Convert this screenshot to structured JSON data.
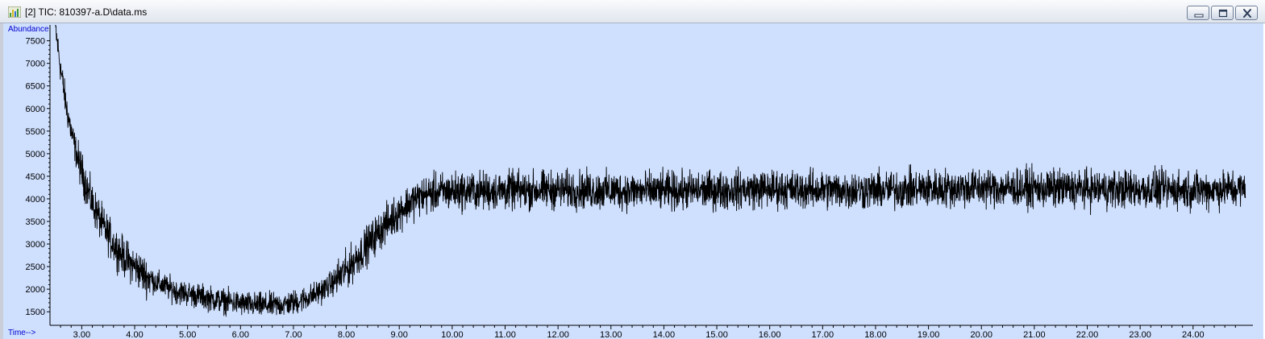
{
  "window": {
    "title": "[2] TIC: 810397-a.D\\data.ms",
    "buttons": {
      "minimize": "minimize",
      "restore": "restore",
      "close": "close"
    }
  },
  "colors": {
    "plot_background": "#cfe0ff",
    "trace": "#000000",
    "axis_title": "#0000cc",
    "axis": "#000000"
  },
  "chart_data": {
    "type": "line",
    "ylabel": "Abundance",
    "xlabel": "Time-->",
    "x_ticks": [
      "3.00",
      "4.00",
      "5.00",
      "6.00",
      "7.00",
      "8.00",
      "9.00",
      "10.00",
      "11.00",
      "12.00",
      "13.00",
      "14.00",
      "15.00",
      "16.00",
      "17.00",
      "18.00",
      "19.00",
      "20.00",
      "21.00",
      "22.00",
      "23.00",
      "24.00"
    ],
    "y_ticks": [
      "1500",
      "2000",
      "2500",
      "3000",
      "3500",
      "4000",
      "4500",
      "5000",
      "5500",
      "6000",
      "6500",
      "7000",
      "7500"
    ],
    "xlim": [
      2.4,
      25.1
    ],
    "ylim": [
      1200,
      7850
    ],
    "grid": false,
    "series": [
      {
        "x": [
          2.5,
          2.6,
          2.7,
          2.8,
          2.9,
          3.0,
          3.2,
          3.4,
          3.6,
          3.8,
          4.0,
          4.2,
          4.4,
          4.6,
          4.8,
          5.0,
          5.2,
          5.4,
          5.6,
          5.8,
          6.0,
          6.2,
          6.4,
          6.6,
          6.8,
          7.0,
          7.2,
          7.4,
          7.6,
          7.8,
          8.0,
          8.2,
          8.4,
          8.6,
          8.8,
          9.0,
          9.2,
          9.4,
          9.6,
          9.8,
          10.0,
          11.0,
          12.0,
          13.0,
          14.0,
          15.0,
          16.0,
          17.0,
          18.0,
          19.0,
          20.0,
          21.0,
          22.0,
          23.0,
          24.0,
          25.0
        ],
        "y": [
          7800,
          6900,
          6100,
          5500,
          5000,
          4600,
          3900,
          3400,
          3000,
          2700,
          2500,
          2300,
          2150,
          2050,
          1950,
          1900,
          1850,
          1800,
          1750,
          1720,
          1680,
          1650,
          1640,
          1640,
          1660,
          1700,
          1780,
          1880,
          2020,
          2200,
          2420,
          2700,
          2980,
          3250,
          3500,
          3720,
          3920,
          4050,
          4120,
          4150,
          4170,
          4180,
          4200,
          4180,
          4170,
          4190,
          4220,
          4200,
          4190,
          4230,
          4250,
          4230,
          4220,
          4210,
          4200,
          4220
        ]
      }
    ],
    "noise_amplitude": 320
  }
}
